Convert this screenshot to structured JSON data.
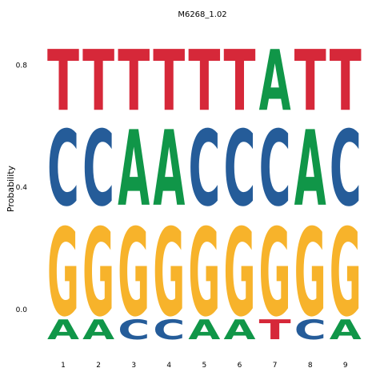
{
  "chart_data": {
    "type": "sequence-logo",
    "title": "M6268_1.02",
    "ylabel": "Probability",
    "ylim": [
      0,
      1
    ],
    "y_ticks": [
      "0.0",
      "0.4",
      "0.8"
    ],
    "y_tick_values": [
      0.0,
      0.4,
      0.8
    ],
    "positions": [
      "1",
      "2",
      "3",
      "4",
      "5",
      "6",
      "7",
      "8",
      "9"
    ],
    "colors": {
      "A": "#109648",
      "C": "#255C99",
      "G": "#F7B32B",
      "T": "#D62839"
    },
    "stacks": [
      [
        {
          "letter": "A",
          "prob": 0.08
        },
        {
          "letter": "G",
          "prob": 0.36
        },
        {
          "letter": "C",
          "prob": 0.31
        },
        {
          "letter": "T",
          "prob": 0.25
        }
      ],
      [
        {
          "letter": "A",
          "prob": 0.08
        },
        {
          "letter": "G",
          "prob": 0.36
        },
        {
          "letter": "C",
          "prob": 0.31
        },
        {
          "letter": "T",
          "prob": 0.25
        }
      ],
      [
        {
          "letter": "C",
          "prob": 0.08
        },
        {
          "letter": "G",
          "prob": 0.36
        },
        {
          "letter": "A",
          "prob": 0.31
        },
        {
          "letter": "T",
          "prob": 0.25
        }
      ],
      [
        {
          "letter": "C",
          "prob": 0.08
        },
        {
          "letter": "G",
          "prob": 0.36
        },
        {
          "letter": "A",
          "prob": 0.31
        },
        {
          "letter": "T",
          "prob": 0.25
        }
      ],
      [
        {
          "letter": "A",
          "prob": 0.08
        },
        {
          "letter": "G",
          "prob": 0.36
        },
        {
          "letter": "C",
          "prob": 0.31
        },
        {
          "letter": "T",
          "prob": 0.25
        }
      ],
      [
        {
          "letter": "A",
          "prob": 0.08
        },
        {
          "letter": "G",
          "prob": 0.36
        },
        {
          "letter": "C",
          "prob": 0.31
        },
        {
          "letter": "T",
          "prob": 0.25
        }
      ],
      [
        {
          "letter": "T",
          "prob": 0.08
        },
        {
          "letter": "G",
          "prob": 0.36
        },
        {
          "letter": "C",
          "prob": 0.31
        },
        {
          "letter": "A",
          "prob": 0.25
        }
      ],
      [
        {
          "letter": "C",
          "prob": 0.08
        },
        {
          "letter": "G",
          "prob": 0.36
        },
        {
          "letter": "A",
          "prob": 0.31
        },
        {
          "letter": "T",
          "prob": 0.25
        }
      ],
      [
        {
          "letter": "A",
          "prob": 0.08
        },
        {
          "letter": "G",
          "prob": 0.36
        },
        {
          "letter": "C",
          "prob": 0.31
        },
        {
          "letter": "T",
          "prob": 0.25
        }
      ]
    ]
  }
}
